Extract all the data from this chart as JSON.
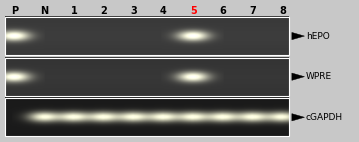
{
  "lane_labels": [
    "P",
    "N",
    "1",
    "2",
    "3",
    "4",
    "5",
    "6",
    "7",
    "8"
  ],
  "lane_label_colors": [
    "black",
    "black",
    "black",
    "black",
    "black",
    "black",
    "red",
    "black",
    "black",
    "black"
  ],
  "rows": [
    {
      "label": "hEPO",
      "bands": [
        0,
        6
      ],
      "bg_color": [
        0.22,
        0.22,
        0.22
      ]
    },
    {
      "label": "WPRE",
      "bands": [
        0,
        6
      ],
      "bg_color": [
        0.2,
        0.2,
        0.2
      ]
    },
    {
      "label": "cGAPDH",
      "bands": [
        1,
        2,
        3,
        4,
        5,
        6,
        7,
        8,
        9
      ],
      "bg_color": [
        0.1,
        0.1,
        0.1
      ]
    }
  ],
  "outer_bg": "#c8c8c8",
  "header_fontsize": 7.0,
  "label_fontsize": 6.5,
  "n_lanes": 10,
  "n_rows": 3
}
